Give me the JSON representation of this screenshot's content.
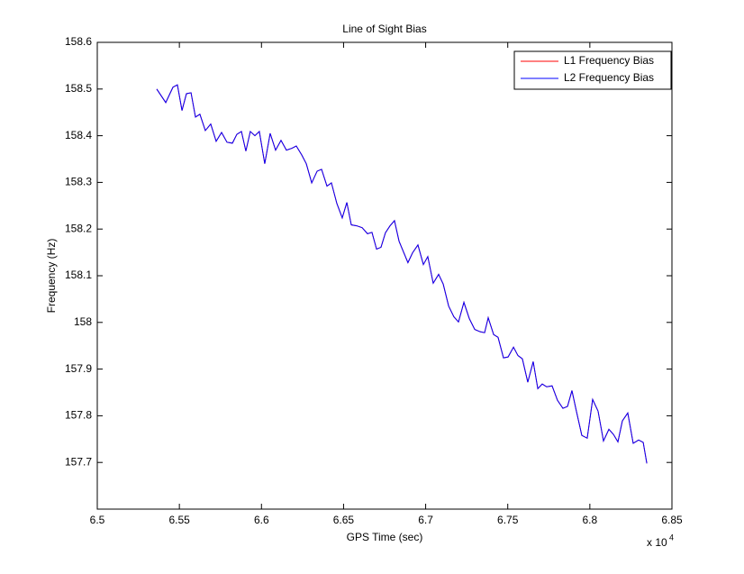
{
  "chart_data": {
    "type": "line",
    "title": "Line of Sight Bias",
    "x_label": "GPS Time (sec)",
    "y_label": "Frequency (Hz)",
    "x_multiplier": "x 10",
    "x_multiplier_exponent": "4",
    "x": [
      6.5362,
      6.5417,
      6.5461,
      6.5488,
      6.5516,
      6.5543,
      6.5571,
      6.5598,
      6.5625,
      6.5658,
      6.5691,
      6.5724,
      6.5757,
      6.579,
      6.5823,
      6.585,
      6.5878,
      6.5905,
      6.5932,
      6.596,
      6.5987,
      6.602,
      6.6053,
      6.6086,
      6.6119,
      6.6152,
      6.6185,
      6.6212,
      6.6245,
      6.6273,
      6.6306,
      6.6339,
      6.6366,
      6.6399,
      6.6426,
      6.6459,
      6.6492,
      6.652,
      6.6547,
      6.658,
      6.6613,
      6.6646,
      6.6673,
      6.6701,
      6.6728,
      6.6755,
      6.6783,
      6.681,
      6.6838,
      6.6865,
      6.6892,
      6.692,
      6.6953,
      6.6986,
      6.7013,
      6.7046,
      6.7079,
      6.7107,
      6.714,
      6.7172,
      6.72,
      6.7233,
      6.7266,
      6.7299,
      6.7332,
      6.7359,
      6.7381,
      6.7414,
      6.7441,
      6.7474,
      6.7502,
      6.7535,
      6.7562,
      6.7589,
      6.7622,
      6.7655,
      6.7683,
      6.771,
      6.7737,
      6.777,
      6.7803,
      6.7836,
      6.7864,
      6.7891,
      6.7918,
      6.7951,
      6.7984,
      6.8017,
      6.805,
      6.8083,
      6.8116,
      6.8144,
      6.8171,
      6.8198,
      6.8231,
      6.8264,
      6.8297,
      6.8325,
      6.8347
    ],
    "series": [
      {
        "name": "L1 Frequency Bias",
        "color": "#ff0000",
        "values": [
          158.5,
          158.471,
          158.504,
          158.509,
          158.454,
          158.49,
          158.492,
          158.44,
          158.446,
          158.411,
          158.425,
          158.388,
          158.407,
          158.386,
          158.384,
          158.403,
          158.409,
          158.367,
          158.409,
          158.4,
          158.409,
          158.34,
          158.405,
          158.369,
          158.39,
          158.369,
          158.373,
          158.378,
          158.359,
          158.34,
          158.299,
          158.324,
          158.328,
          158.292,
          158.299,
          158.255,
          158.224,
          158.257,
          158.209,
          158.207,
          158.203,
          158.19,
          158.193,
          158.157,
          158.161,
          158.192,
          158.207,
          158.218,
          158.174,
          158.151,
          158.128,
          158.149,
          158.166,
          158.124,
          158.141,
          158.084,
          158.103,
          158.082,
          158.035,
          158.012,
          158.001,
          158.043,
          158.008,
          157.985,
          157.98,
          157.978,
          158.01,
          157.974,
          157.968,
          157.924,
          157.926,
          157.947,
          157.929,
          157.922,
          157.872,
          157.916,
          157.858,
          157.868,
          157.862,
          157.864,
          157.833,
          157.816,
          157.82,
          157.854,
          157.81,
          157.758,
          157.752,
          157.835,
          157.81,
          157.746,
          157.771,
          157.76,
          157.744,
          157.789,
          157.806,
          157.741,
          157.748,
          157.743,
          157.698
        ]
      },
      {
        "name": "L2 Frequency Bias",
        "color": "#0000ff",
        "values": [
          158.5,
          158.471,
          158.504,
          158.509,
          158.454,
          158.49,
          158.492,
          158.44,
          158.446,
          158.411,
          158.425,
          158.388,
          158.407,
          158.386,
          158.384,
          158.403,
          158.409,
          158.367,
          158.409,
          158.4,
          158.409,
          158.34,
          158.405,
          158.369,
          158.39,
          158.369,
          158.373,
          158.378,
          158.359,
          158.34,
          158.299,
          158.324,
          158.328,
          158.292,
          158.299,
          158.255,
          158.224,
          158.257,
          158.209,
          158.207,
          158.203,
          158.19,
          158.193,
          158.157,
          158.161,
          158.192,
          158.207,
          158.218,
          158.174,
          158.151,
          158.128,
          158.149,
          158.166,
          158.124,
          158.141,
          158.084,
          158.103,
          158.082,
          158.035,
          158.012,
          158.001,
          158.043,
          158.008,
          157.985,
          157.98,
          157.978,
          158.01,
          157.974,
          157.968,
          157.924,
          157.926,
          157.947,
          157.929,
          157.922,
          157.872,
          157.916,
          157.858,
          157.868,
          157.862,
          157.864,
          157.833,
          157.816,
          157.82,
          157.854,
          157.81,
          157.758,
          157.752,
          157.835,
          157.81,
          157.746,
          157.771,
          157.76,
          157.744,
          157.789,
          157.806,
          157.741,
          157.748,
          157.743,
          157.698
        ]
      }
    ],
    "xlim": [
      6.5,
      6.85
    ],
    "xticks": [
      6.5,
      6.55,
      6.6,
      6.65,
      6.7,
      6.75,
      6.8,
      6.85
    ],
    "ylim": [
      157.6,
      158.6
    ],
    "yticks": [
      157.7,
      157.8,
      157.9,
      158,
      158.1,
      158.2,
      158.3,
      158.4,
      158.5,
      158.6
    ],
    "grid": false,
    "legend": "upper right"
  }
}
